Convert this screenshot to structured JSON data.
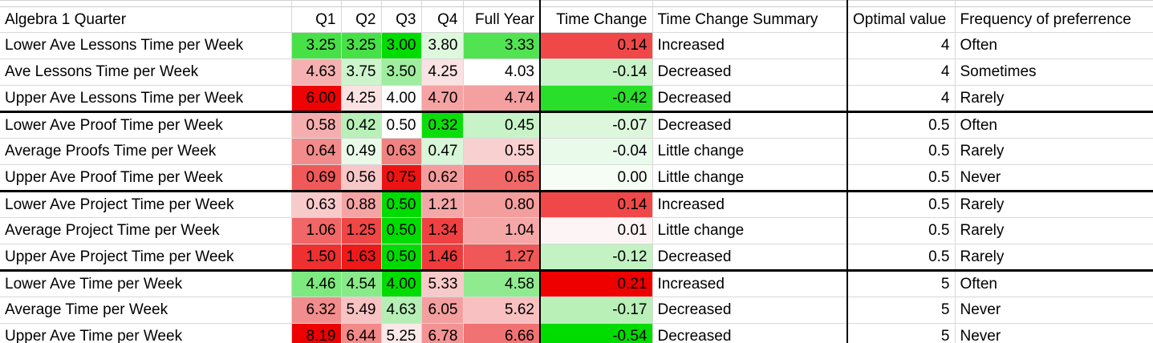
{
  "sheet": {
    "app": "spreadsheet",
    "gridline_color": "#d8d8d8",
    "group_separator_color": "#000000",
    "header": {
      "label": "Algebra 1 Quarter",
      "q1": "Q1",
      "q2": "Q2",
      "q3": "Q3",
      "q4": "Q4",
      "full_year": "Full Year",
      "time_change": "Time Change",
      "summary": "Time Change Summary",
      "optimal": "Optimal value",
      "frequency": "Frequency of preferrence"
    },
    "rows": [
      {
        "label": "Lower Ave Lessons Time per Week",
        "values": [
          {
            "v": "3.25",
            "bg": "#47e147"
          },
          {
            "v": "3.25",
            "bg": "#47e147"
          },
          {
            "v": "3.00",
            "bg": "#00dc00"
          },
          {
            "v": "3.80",
            "bg": "#ddf8dd"
          }
        ],
        "full_year": {
          "v": "3.33",
          "bg": "#52e352"
        },
        "time_change": {
          "v": "0.14",
          "bg": "#f04848"
        },
        "summary": "Increased",
        "optimal": "4",
        "frequency": "Often",
        "thick_bottom": false
      },
      {
        "label": "Ave Lessons Time per Week",
        "values": [
          {
            "v": "4.63",
            "bg": "#f5b1b1"
          },
          {
            "v": "3.75",
            "bg": "#cdf4cd"
          },
          {
            "v": "3.50",
            "bg": "#9fed9f"
          },
          {
            "v": "4.25",
            "bg": "#fbe2e2"
          }
        ],
        "full_year": {
          "v": "4.03",
          "bg": "#ffffff"
        },
        "time_change": {
          "v": "-0.14",
          "bg": "#c9f3c9"
        },
        "summary": "Decreased",
        "optimal": "4",
        "frequency": "Sometimes",
        "thick_bottom": false
      },
      {
        "label": "Upper Ave Lessons Time per Week",
        "values": [
          {
            "v": "6.00",
            "bg": "#ee0202"
          },
          {
            "v": "4.25",
            "bg": "#fbe2e2"
          },
          {
            "v": "4.00",
            "bg": "#ffffff"
          },
          {
            "v": "4.70",
            "bg": "#f5a3a3"
          }
        ],
        "full_year": {
          "v": "4.74",
          "bg": "#f5a0a0"
        },
        "time_change": {
          "v": "-0.42",
          "bg": "#29df29"
        },
        "summary": "Decreased",
        "optimal": "4",
        "frequency": "Rarely",
        "thick_bottom": true
      },
      {
        "label": "Lower Ave Proof Time per Week",
        "values": [
          {
            "v": "0.58",
            "bg": "#f5aeae"
          },
          {
            "v": "0.42",
            "bg": "#b9f0b9"
          },
          {
            "v": "0.50",
            "bg": "#ffffff"
          },
          {
            "v": "0.32",
            "bg": "#0bdd0b"
          }
        ],
        "full_year": {
          "v": "0.45",
          "bg": "#c8f3c8"
        },
        "time_change": {
          "v": "-0.07",
          "bg": "#ddf7dd"
        },
        "summary": "Decreased",
        "optimal": "0.5",
        "frequency": "Often",
        "thick_bottom": false
      },
      {
        "label": "Average Proofs Time per Week",
        "values": [
          {
            "v": "0.64",
            "bg": "#f28b8b"
          },
          {
            "v": "0.49",
            "bg": "#e9fae9"
          },
          {
            "v": "0.63",
            "bg": "#f18282"
          },
          {
            "v": "0.47",
            "bg": "#d8f6d8"
          }
        ],
        "full_year": {
          "v": "0.55",
          "bg": "#f9d0d0"
        },
        "time_change": {
          "v": "-0.04",
          "bg": "#eafaea"
        },
        "summary": "Little change",
        "optimal": "0.5",
        "frequency": "Rarely",
        "thick_bottom": false
      },
      {
        "label": "Upper Ave Proof Time per Week",
        "values": [
          {
            "v": "0.69",
            "bg": "#f05959"
          },
          {
            "v": "0.56",
            "bg": "#f8c7c7"
          },
          {
            "v": "0.75",
            "bg": "#ee1313"
          },
          {
            "v": "0.62",
            "bg": "#f49b9b"
          }
        ],
        "full_year": {
          "v": "0.65",
          "bg": "#f16868"
        },
        "time_change": {
          "v": "0.00",
          "bg": "#f5fdf5"
        },
        "summary": "Little change",
        "optimal": "0.5",
        "frequency": "Never",
        "thick_bottom": true
      },
      {
        "label": "Lower Ave Project Time per Week",
        "values": [
          {
            "v": "0.63",
            "bg": "#f8caca"
          },
          {
            "v": "0.88",
            "bg": "#f4a4a4"
          },
          {
            "v": "0.50",
            "bg": "#00dc00"
          },
          {
            "v": "1.21",
            "bg": "#f4a7a7"
          }
        ],
        "full_year": {
          "v": "0.80",
          "bg": "#f49d9d"
        },
        "time_change": {
          "v": "0.14",
          "bg": "#f04848"
        },
        "summary": "Increased",
        "optimal": "0.5",
        "frequency": "Rarely",
        "thick_bottom": false
      },
      {
        "label": "Average Project Time per Week",
        "values": [
          {
            "v": "1.06",
            "bg": "#f16666"
          },
          {
            "v": "1.25",
            "bg": "#ef4646"
          },
          {
            "v": "0.50",
            "bg": "#00dc00"
          },
          {
            "v": "1.34",
            "bg": "#ef4141"
          }
        ],
        "full_year": {
          "v": "1.04",
          "bg": "#f5a7a7"
        },
        "time_change": {
          "v": "0.01",
          "bg": "#fdf5f5"
        },
        "summary": "Little change",
        "optimal": "0.5",
        "frequency": "Rarely",
        "thick_bottom": false
      },
      {
        "label": "Upper Ave Project Time per Week",
        "values": [
          {
            "v": "1.50",
            "bg": "#ef3030"
          },
          {
            "v": "1.63",
            "bg": "#ee1919"
          },
          {
            "v": "0.50",
            "bg": "#00dc00"
          },
          {
            "v": "1.46",
            "bg": "#ef3b3b"
          }
        ],
        "full_year": {
          "v": "1.27",
          "bg": "#f05757"
        },
        "time_change": {
          "v": "-0.12",
          "bg": "#c3f2c3"
        },
        "summary": "Decreased",
        "optimal": "0.5",
        "frequency": "Rarely",
        "thick_bottom": true
      },
      {
        "label": "Lower Ave Time per Week",
        "values": [
          {
            "v": "4.46",
            "bg": "#7ee97e"
          },
          {
            "v": "4.54",
            "bg": "#89ea89"
          },
          {
            "v": "4.00",
            "bg": "#00dc00"
          },
          {
            "v": "5.33",
            "bg": "#f8c9c9"
          }
        ],
        "full_year": {
          "v": "4.58",
          "bg": "#90eb90"
        },
        "time_change": {
          "v": "0.21",
          "bg": "#ee0000"
        },
        "summary": "Increased",
        "optimal": "5",
        "frequency": "Often",
        "thick_bottom": false
      },
      {
        "label": "Average Time per Week",
        "values": [
          {
            "v": "6.32",
            "bg": "#f28d8d"
          },
          {
            "v": "5.49",
            "bg": "#f8c3c3"
          },
          {
            "v": "4.63",
            "bg": "#b6efb6"
          },
          {
            "v": "6.05",
            "bg": "#f49f9f"
          }
        ],
        "full_year": {
          "v": "5.62",
          "bg": "#f8c0c0"
        },
        "time_change": {
          "v": "-0.17",
          "bg": "#b8f0b8"
        },
        "summary": "Decreased",
        "optimal": "5",
        "frequency": "Never",
        "thick_bottom": false
      },
      {
        "label": "Upper Ave Time per Week",
        "values": [
          {
            "v": "8.19",
            "bg": "#ee0000"
          },
          {
            "v": "6.44",
            "bg": "#f28a8a"
          },
          {
            "v": "5.25",
            "bg": "#fbe9e9"
          },
          {
            "v": "6.78",
            "bg": "#f39393"
          }
        ],
        "full_year": {
          "v": "6.66",
          "bg": "#f17272"
        },
        "time_change": {
          "v": "-0.54",
          "bg": "#00dc00"
        },
        "summary": "Decreased",
        "optimal": "5",
        "frequency": "Never",
        "thick_bottom": false
      }
    ]
  }
}
